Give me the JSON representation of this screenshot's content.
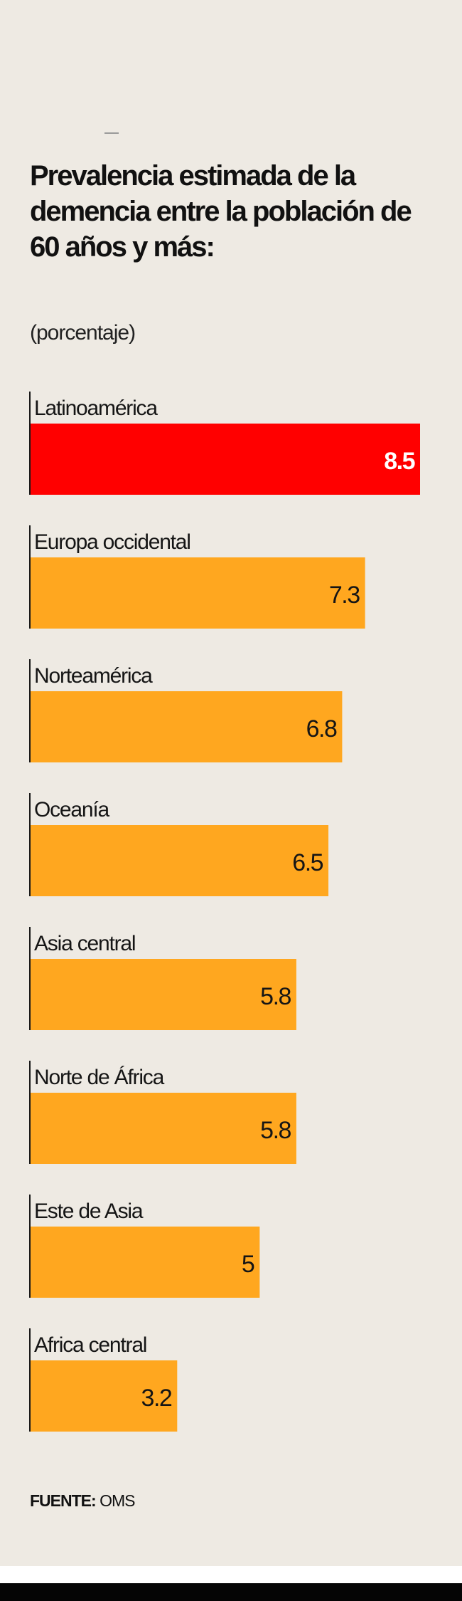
{
  "title": "Prevalencia estimada de la demencia entre la población de 60 años y más:",
  "subtitle": "(porcentaje)",
  "source": {
    "label": "FUENTE:",
    "value": "OMS"
  },
  "colors": {
    "highlight": "#ff0000",
    "bar": "#ffa71f",
    "background": "#eeeae3"
  },
  "chart_data": {
    "type": "bar",
    "orientation": "horizontal",
    "categories": [
      "Latinoamérica",
      "Europa occidental",
      "Norteamérica",
      "Oceanía",
      "Asia central",
      "Norte de África",
      "Este de Asia",
      "Africa central"
    ],
    "values": [
      8.5,
      7.3,
      6.8,
      6.5,
      5.8,
      5.8,
      5,
      3.2
    ],
    "value_labels": [
      "8.5",
      "7.3",
      "6.8",
      "6.5",
      "5.8",
      "5.8",
      "5",
      "3.2"
    ],
    "highlight_index": 0,
    "xlim": [
      0,
      8.5
    ],
    "grid": false,
    "legend": "none",
    "title": "Prevalencia estimada de la demencia entre la población de 60 años y más:",
    "xlabel": "",
    "ylabel": ""
  }
}
